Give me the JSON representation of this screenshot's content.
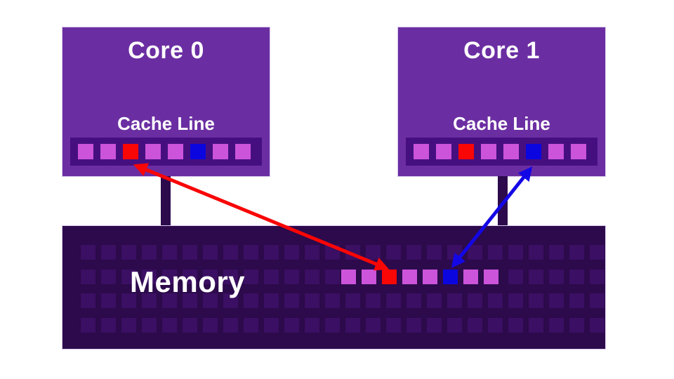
{
  "colors": {
    "violet": "#cb54db",
    "red": "#f90606",
    "blue": "#0b06e0",
    "core_fill": "#6b2ea2",
    "cache_strip": "#460f80",
    "memory_fill": "#2c0a4b",
    "memory_cell_dim": "#3b0f63",
    "arrow_red": "#f90606",
    "arrow_blue": "#1407e6",
    "text": "#ffffff"
  },
  "cores": [
    {
      "title": "Core 0",
      "cache_label": "Cache Line",
      "cache_cells": [
        "violet",
        "violet",
        "red",
        "violet",
        "violet",
        "blue",
        "violet",
        "violet"
      ]
    },
    {
      "title": "Core 1",
      "cache_label": "Cache Line",
      "cache_cells": [
        "violet",
        "violet",
        "red",
        "violet",
        "violet",
        "blue",
        "violet",
        "violet"
      ]
    }
  ],
  "memory": {
    "label": "Memory",
    "grid_rows": 4,
    "grid_cols": 26,
    "highlight_row": 1,
    "highlight_start_col": 13,
    "highlight_cells": [
      "violet",
      "violet",
      "red",
      "violet",
      "violet",
      "blue",
      "violet",
      "violet"
    ]
  },
  "arrows": [
    {
      "id": "red-arrow",
      "color_key": "arrow_red",
      "from": "core0-cache-red-cell",
      "to": "memory-red-cell"
    },
    {
      "id": "blue-arrow",
      "color_key": "arrow_blue",
      "from": "core1-cache-blue-cell",
      "to": "memory-blue-cell"
    }
  ]
}
